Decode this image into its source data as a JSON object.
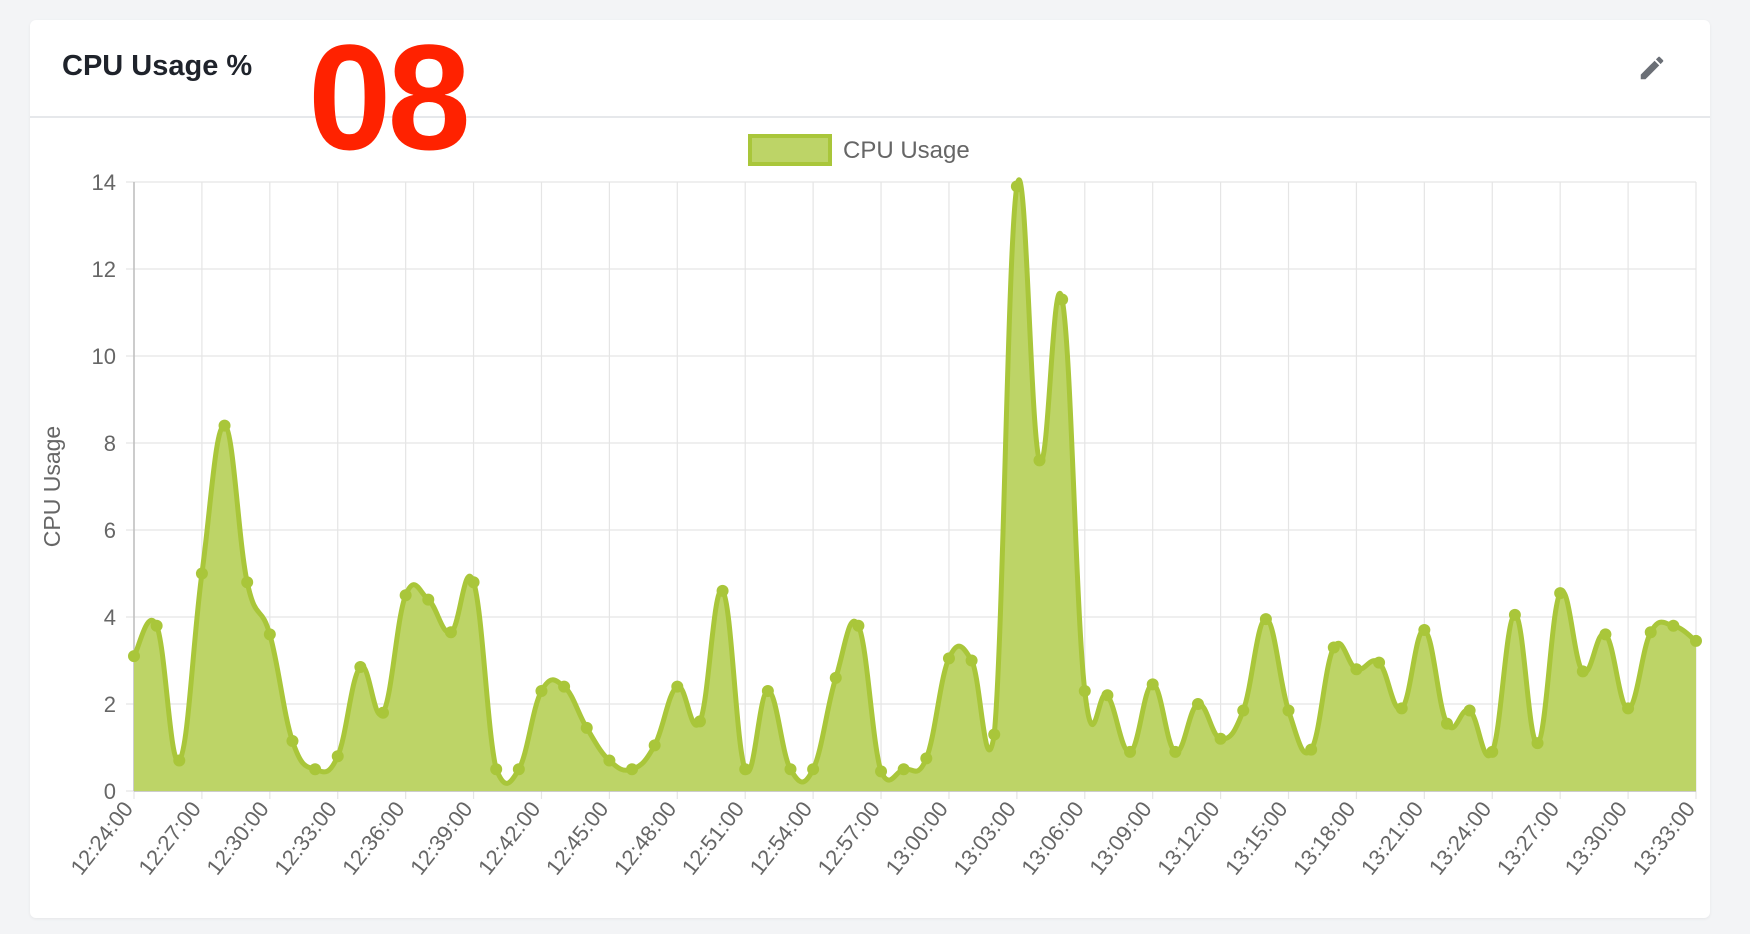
{
  "panel": {
    "title": "CPU Usage %",
    "overlay_label": "08",
    "edit_icon": "pencil-icon"
  },
  "colors": {
    "series_line": "#a9c63a",
    "series_fill": "#bdd467",
    "overlay": "#ff2200",
    "grid": "#e5e5e5",
    "axis_text": "#666666"
  },
  "chart_data": {
    "type": "area",
    "title": "",
    "xlabel": "",
    "ylabel": "CPU Usage",
    "ylim": [
      0,
      14
    ],
    "yticks": [
      0,
      2,
      4,
      6,
      8,
      10,
      12,
      14
    ],
    "grid": true,
    "legend": "top-center",
    "x_tick_labels": [
      "12:24:00",
      "12:27:00",
      "12:30:00",
      "12:33:00",
      "12:36:00",
      "12:39:00",
      "12:42:00",
      "12:45:00",
      "12:48:00",
      "12:51:00",
      "12:54:00",
      "12:57:00",
      "13:00:00",
      "13:03:00",
      "13:06:00",
      "13:09:00",
      "13:12:00",
      "13:15:00",
      "13:18:00",
      "13:21:00",
      "13:24:00",
      "13:27:00",
      "13:30:00",
      "13:33:00"
    ],
    "series": [
      {
        "name": "CPU Usage",
        "x": [
          "12:24:00",
          "12:25:00",
          "12:26:00",
          "12:27:00",
          "12:28:00",
          "12:29:00",
          "12:30:00",
          "12:31:00",
          "12:32:00",
          "12:33:00",
          "12:34:00",
          "12:35:00",
          "12:36:00",
          "12:37:00",
          "12:38:00",
          "12:39:00",
          "12:40:00",
          "12:41:00",
          "12:42:00",
          "12:43:00",
          "12:44:00",
          "12:45:00",
          "12:46:00",
          "12:47:00",
          "12:48:00",
          "12:49:00",
          "12:50:00",
          "12:51:00",
          "12:52:00",
          "12:53:00",
          "12:54:00",
          "12:55:00",
          "12:56:00",
          "12:57:00",
          "12:58:00",
          "12:59:00",
          "13:00:00",
          "13:01:00",
          "13:02:00",
          "13:03:00",
          "13:04:00",
          "13:05:00",
          "13:06:00",
          "13:07:00",
          "13:08:00",
          "13:09:00",
          "13:10:00",
          "13:11:00",
          "13:12:00",
          "13:13:00",
          "13:14:00",
          "13:15:00",
          "13:16:00",
          "13:17:00",
          "13:18:00",
          "13:19:00",
          "13:20:00",
          "13:21:00",
          "13:22:00",
          "13:23:00",
          "13:24:00",
          "13:25:00",
          "13:26:00",
          "13:27:00",
          "13:28:00",
          "13:29:00",
          "13:30:00",
          "13:31:00",
          "13:32:00",
          "13:33:00"
        ],
        "values": [
          3.1,
          3.8,
          0.7,
          5.0,
          8.4,
          4.8,
          3.6,
          1.15,
          0.5,
          0.8,
          2.85,
          1.8,
          4.5,
          4.4,
          3.65,
          4.8,
          0.5,
          0.5,
          2.3,
          2.4,
          1.45,
          0.7,
          0.5,
          1.05,
          2.4,
          1.6,
          4.6,
          0.5,
          2.3,
          0.5,
          0.5,
          2.6,
          3.8,
          0.45,
          0.5,
          0.75,
          3.05,
          3.0,
          1.3,
          13.9,
          7.6,
          11.3,
          2.3,
          2.2,
          0.9,
          2.45,
          0.9,
          2.0,
          1.2,
          1.85,
          3.95,
          1.85,
          0.95,
          3.3,
          2.8,
          2.95,
          1.9,
          3.7,
          1.55,
          1.85,
          0.9,
          4.05,
          1.1,
          4.55,
          2.75,
          3.6,
          1.9,
          3.65,
          3.8,
          3.45
        ]
      }
    ]
  }
}
